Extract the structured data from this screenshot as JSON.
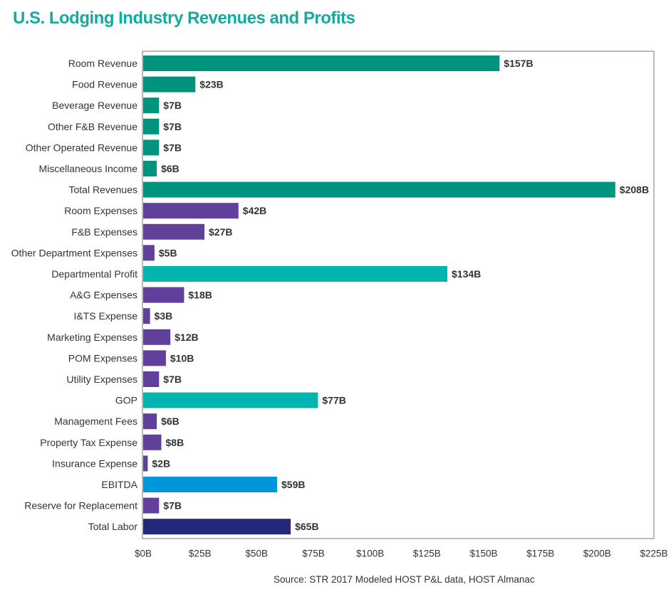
{
  "chart_data": {
    "type": "bar",
    "orientation": "horizontal",
    "title": "U.S. Lodging Industry Revenues and Profits",
    "source": "Source: STR 2017 Modeled HOST P&L data, HOST Almanac",
    "xlim": [
      0,
      225
    ],
    "x_ticks": [
      0,
      25,
      50,
      75,
      100,
      125,
      150,
      175,
      200,
      225
    ],
    "x_tick_labels": [
      "$0B",
      "$25B",
      "$50B",
      "$75B",
      "$100B",
      "$125B",
      "$150B",
      "$175B",
      "$200B",
      "$225B"
    ],
    "grid": false,
    "categories": [
      "Room Revenue",
      "Food Revenue",
      "Beverage Revenue",
      "Other F&B Revenue",
      "Other Operated Revenue",
      "Miscellaneous Income",
      "Total Revenues",
      "Room Expenses",
      "F&B Expenses",
      "Other Department Expenses",
      "Departmental Profit",
      "A&G Expenses",
      "I&TS Expense",
      "Marketing Expenses",
      "POM Expenses",
      "Utility Expenses",
      "GOP",
      "Management Fees",
      "Property Tax Expense",
      "Insurance Expense",
      "EBITDA",
      "Reserve for Replacement",
      "Total Labor"
    ],
    "values": [
      157,
      23,
      7,
      7,
      7,
      6,
      208,
      42,
      27,
      5,
      134,
      18,
      3,
      12,
      10,
      7,
      77,
      6,
      8,
      2,
      59,
      7,
      65
    ],
    "value_labels": [
      "$157B",
      "$23B",
      "$7B",
      "$7B",
      "$7B",
      "$6B",
      "$208B",
      "$42B",
      "$27B",
      "$5B",
      "$134B",
      "$18B",
      "$3B",
      "$12B",
      "$10B",
      "$7B",
      "$77B",
      "$6B",
      "$8B",
      "$2B",
      "$59B",
      "$7B",
      "$65B"
    ],
    "bar_colors": [
      "#00947f",
      "#00947f",
      "#00947f",
      "#00947f",
      "#00947f",
      "#00947f",
      "#00947f",
      "#61409c",
      "#61409c",
      "#61409c",
      "#00b5ad",
      "#61409c",
      "#61409c",
      "#61409c",
      "#61409c",
      "#61409c",
      "#00b5ad",
      "#61409c",
      "#61409c",
      "#61409c",
      "#0096db",
      "#61409c",
      "#25287a"
    ]
  },
  "colors": {
    "title": "#16a99e",
    "text": "#333333",
    "axis_frame": "#777777"
  }
}
